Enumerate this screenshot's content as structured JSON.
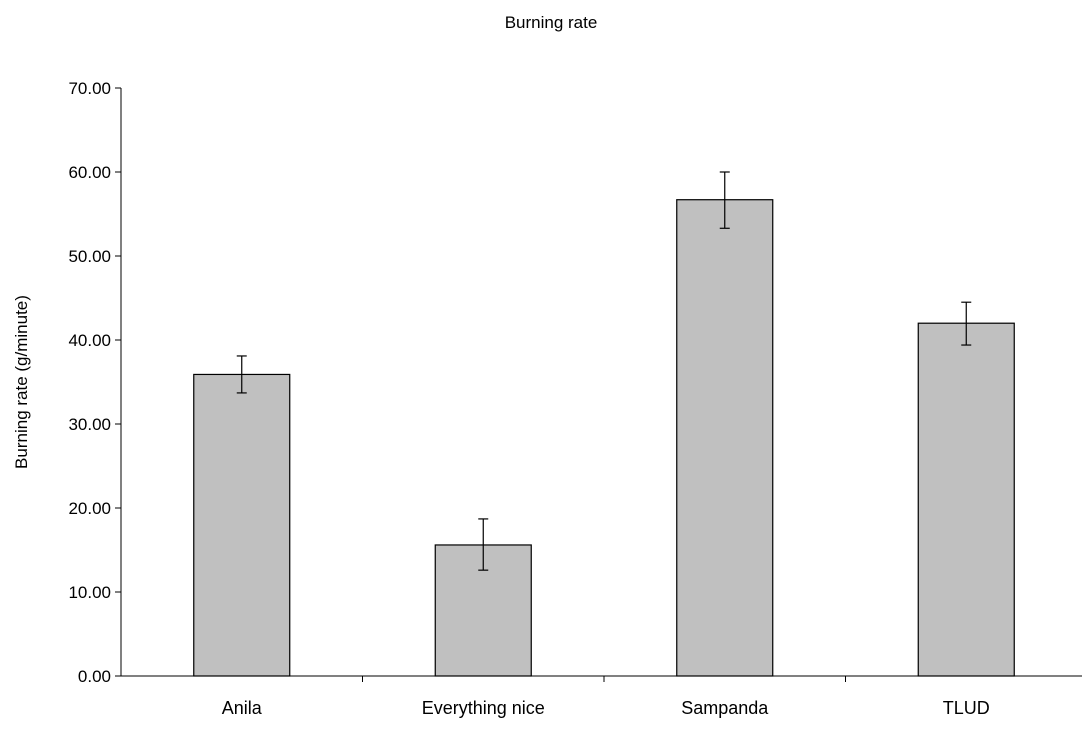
{
  "chart_data": {
    "type": "bar",
    "title": "Burning rate",
    "xlabel": "",
    "ylabel": "Burning rate (g/minute)",
    "categories": [
      "Anila",
      "Everything nice",
      "Sampanda",
      "TLUD"
    ],
    "values": [
      35.9,
      15.6,
      56.7,
      42.0
    ],
    "error_upper": [
      38.1,
      18.7,
      60.0,
      44.5
    ],
    "error_lower": [
      33.7,
      12.6,
      53.3,
      39.4
    ],
    "ylim": [
      0,
      70
    ],
    "yticks": [
      "0.00",
      "10.00",
      "20.00",
      "30.00",
      "40.00",
      "50.00",
      "60.00",
      "70.00"
    ],
    "ytick_values": [
      0,
      10,
      20,
      30,
      40,
      50,
      60,
      70
    ],
    "grid": false,
    "legend": "none",
    "bar_color": "#c0c0c0",
    "bar_edge_color": "#000000"
  }
}
